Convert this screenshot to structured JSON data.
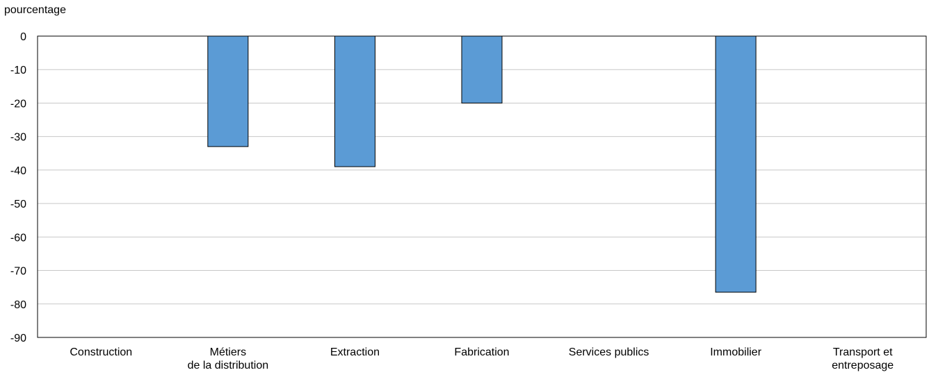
{
  "chart_data": {
    "type": "bar",
    "ylabel": "pourcentage",
    "xlabel": "",
    "title": "",
    "categories": [
      [
        "Construction"
      ],
      [
        "Métiers",
        "de la distribution"
      ],
      [
        "Extraction"
      ],
      [
        "Fabrication"
      ],
      [
        "Services publics"
      ],
      [
        "Immobilier"
      ],
      [
        "Transport et",
        "entreposage"
      ]
    ],
    "values": [
      0,
      -33,
      -39,
      -20,
      0,
      -76.5,
      0
    ],
    "ylim": [
      -90,
      0
    ],
    "yticks": [
      0,
      -10,
      -20,
      -30,
      -40,
      -50,
      -60,
      -70,
      -80,
      -90
    ],
    "grid": true,
    "bar_color": "#5b9bd5",
    "bar_edge_color": "#000000",
    "grid_color": "#c8c8c8"
  }
}
